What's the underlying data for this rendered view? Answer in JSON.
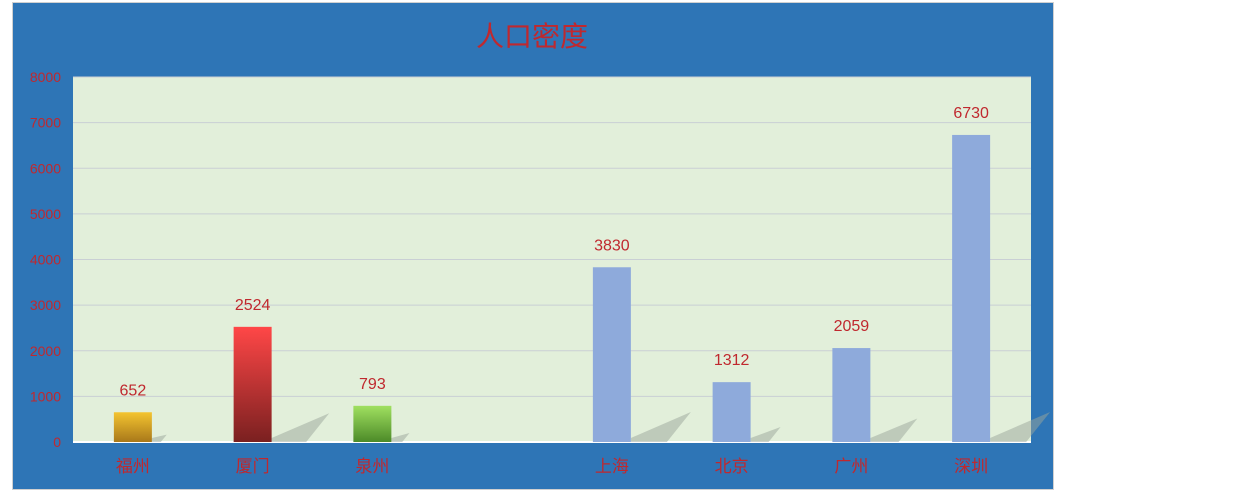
{
  "colors": {
    "frame": "#2e75b6",
    "plot_bg": "#e2efda",
    "gridline": "#c9cfd4",
    "text_red": "#c0282e",
    "default_bar": "#8eaadb"
  },
  "chart_data": {
    "type": "bar",
    "title": "人口密度",
    "xlabel": "",
    "ylabel": "",
    "ylim": [
      0,
      8000
    ],
    "yticks": [
      0,
      1000,
      2000,
      3000,
      4000,
      5000,
      6000,
      7000,
      8000
    ],
    "grid": true,
    "legend": "none",
    "categories": [
      "福州",
      "厦门",
      "泉州",
      "",
      "上海",
      "北京",
      "广州",
      "深圳"
    ],
    "values": [
      652,
      2524,
      793,
      null,
      3830,
      1312,
      2059,
      6730
    ],
    "data_labels": [
      "652",
      "2524",
      "793",
      "",
      "3830",
      "1312",
      "2059",
      "6730"
    ],
    "bar_colors": [
      [
        "#f4c430",
        "#a8781a"
      ],
      [
        "#ff4747",
        "#7a2020"
      ],
      [
        "#a0e060",
        "#4c8a28"
      ],
      [
        "#8eaadb",
        "#8eaadb"
      ],
      [
        "#8eaadb",
        "#8eaadb"
      ],
      [
        "#8eaadb",
        "#8eaadb"
      ],
      [
        "#8eaadb",
        "#8eaadb"
      ],
      [
        "#8eaadb",
        "#8eaadb"
      ]
    ]
  }
}
